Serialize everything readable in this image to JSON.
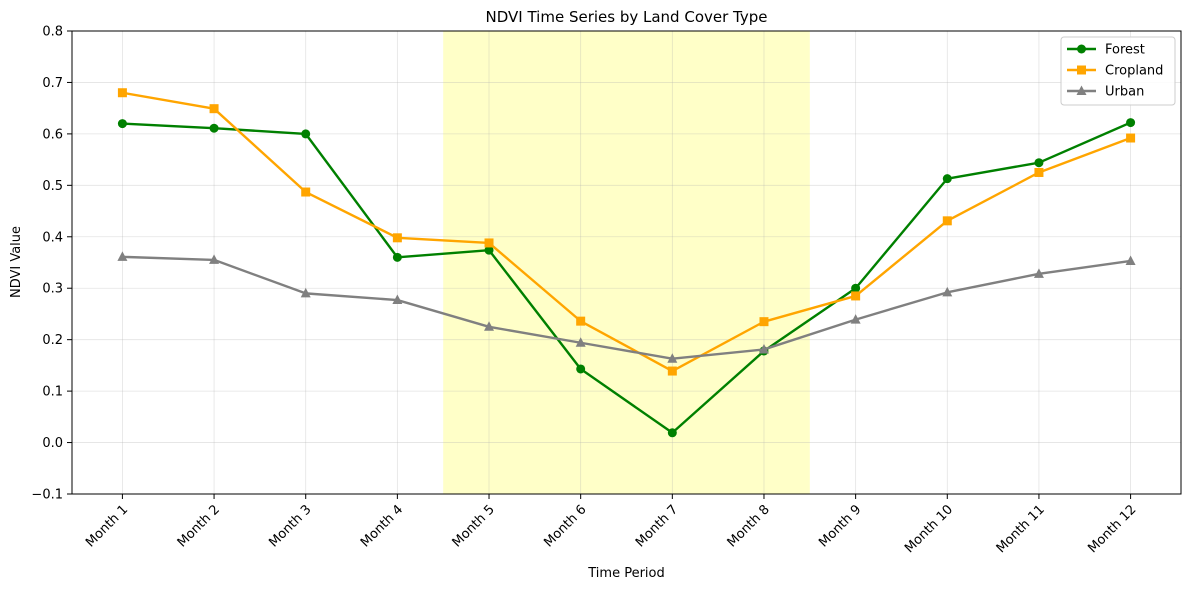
{
  "chart_data": {
    "type": "line",
    "title": "NDVI Time Series by Land Cover Type",
    "xlabel": "Time Period",
    "ylabel": "NDVI Value",
    "categories": [
      "Month 1",
      "Month 2",
      "Month 3",
      "Month 4",
      "Month 5",
      "Month 6",
      "Month 7",
      "Month 8",
      "Month 9",
      "Month 10",
      "Month 11",
      "Month 12"
    ],
    "ylim": [
      -0.1,
      0.8
    ],
    "yticks": [
      "−0.1",
      "0.0",
      "0.1",
      "0.2",
      "0.3",
      "0.4",
      "0.5",
      "0.6",
      "0.7",
      "0.8"
    ],
    "ytick_values": [
      -0.1,
      0.0,
      0.1,
      0.2,
      0.3,
      0.4,
      0.5,
      0.6,
      0.7,
      0.8
    ],
    "grid": true,
    "legend_position": "top-right",
    "highlight_region": {
      "from_category_index": 3.5,
      "to_category_index": 7.5,
      "color": "#ffffc8"
    },
    "series": [
      {
        "name": "Forest",
        "color": "#008000",
        "marker": "circle",
        "values": [
          0.62,
          0.611,
          0.6,
          0.36,
          0.374,
          0.143,
          0.019,
          0.178,
          0.3,
          0.513,
          0.544,
          0.622
        ]
      },
      {
        "name": "Cropland",
        "color": "#ffa500",
        "marker": "square",
        "values": [
          0.68,
          0.649,
          0.487,
          0.398,
          0.388,
          0.236,
          0.139,
          0.235,
          0.285,
          0.431,
          0.525,
          0.592
        ]
      },
      {
        "name": "Urban",
        "color": "#808080",
        "marker": "triangle",
        "values": [
          0.361,
          0.355,
          0.29,
          0.277,
          0.225,
          0.194,
          0.163,
          0.181,
          0.239,
          0.292,
          0.328,
          0.353
        ]
      }
    ]
  }
}
